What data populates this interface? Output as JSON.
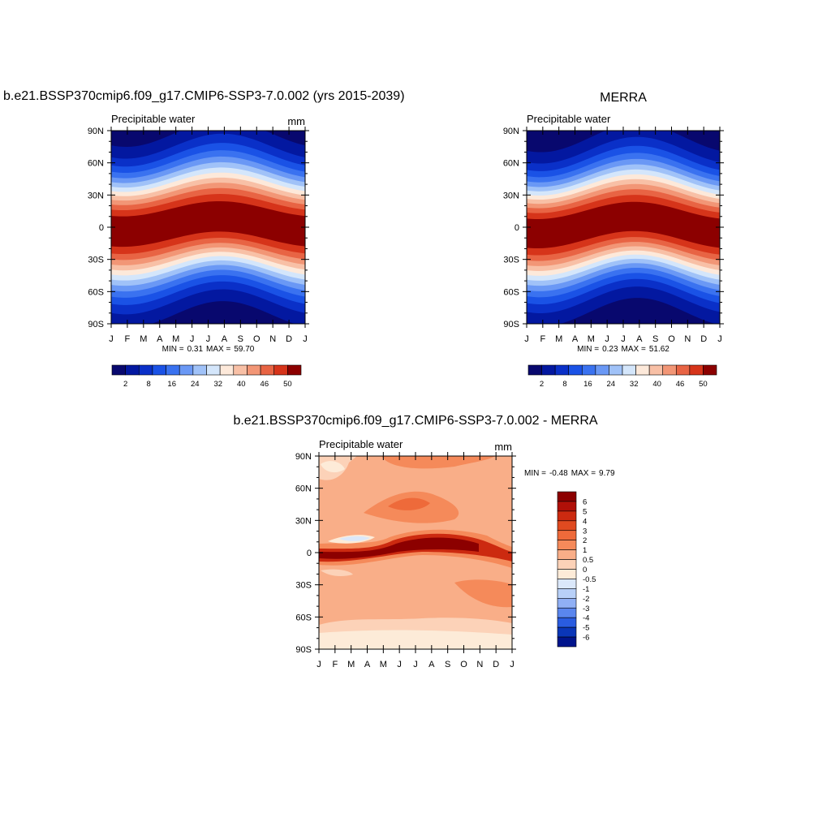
{
  "chart_data": [
    {
      "type": "contour",
      "title": "b.e21.BSSP370cmip6.f09_g17.CMIP6-SSP3-7.0.002 (yrs 2015-2039)",
      "subtitle": "Precipitable water",
      "units": "mm",
      "categories": [
        "J",
        "F",
        "M",
        "A",
        "M",
        "J",
        "J",
        "A",
        "S",
        "O",
        "N",
        "D",
        "J"
      ],
      "ylim": [
        -90,
        90
      ],
      "yticks": [
        {
          "value": 90,
          "label": "90N"
        },
        {
          "value": 60,
          "label": "60N"
        },
        {
          "value": 30,
          "label": "30N"
        },
        0,
        {
          "value": -30,
          "label": "30S"
        },
        {
          "value": -60,
          "label": "60S"
        },
        {
          "value": -90,
          "label": "90S"
        }
      ],
      "min_label": "MIN =",
      "min": 0.31,
      "max_label": "MAX =",
      "max": {
        "value": 59.7,
        "label": "59.70"
      },
      "colorbar_orientation": "horizontal",
      "colors": [
        "#08086e",
        "#0318a0",
        "#0a30c8",
        "#1a52e6",
        "#3a72f0",
        "#6a98f5",
        "#a0c2f8",
        "#d4e6fb",
        "#fde9da",
        "#f8c0a6",
        "#f29676",
        "#e86444",
        "#d6341a",
        "#8c0000"
      ],
      "colorbar_ticks": [
        2,
        8,
        16,
        24,
        32,
        40,
        46,
        50
      ]
    },
    {
      "type": "contour",
      "title": "MERRA",
      "subtitle": "Precipitable water",
      "categories": [
        "J",
        "F",
        "M",
        "A",
        "M",
        "J",
        "J",
        "A",
        "S",
        "O",
        "N",
        "D",
        "J"
      ],
      "ylim": [
        -90,
        90
      ],
      "yticks": [
        {
          "value": 90,
          "label": "90N"
        },
        {
          "value": 60,
          "label": "60N"
        },
        {
          "value": 30,
          "label": "30N"
        },
        0,
        {
          "value": -30,
          "label": "30S"
        },
        {
          "value": -60,
          "label": "60S"
        },
        {
          "value": -90,
          "label": "90S"
        }
      ],
      "min_label": "MIN =",
      "min": 0.23,
      "max_label": "MAX =",
      "max": 51.62,
      "colorbar_orientation": "horizontal",
      "colors": [
        "#08086e",
        "#0318a0",
        "#0a30c8",
        "#1a52e6",
        "#3a72f0",
        "#6a98f5",
        "#a0c2f8",
        "#d4e6fb",
        "#fde9da",
        "#f8c0a6",
        "#f29676",
        "#e86444",
        "#d6341a",
        "#8c0000"
      ],
      "colorbar_ticks": [
        2,
        8,
        16,
        24,
        32,
        40,
        46,
        50
      ]
    },
    {
      "type": "contour-diff",
      "title": "b.e21.BSSP370cmip6.f09_g17.CMIP6-SSP3-7.0.002 - MERRA",
      "subtitle": "Precipitable water",
      "units": "mm",
      "categories": [
        "J",
        "F",
        "M",
        "A",
        "M",
        "J",
        "J",
        "A",
        "S",
        "O",
        "N",
        "D",
        "J"
      ],
      "ylim": [
        -90,
        90
      ],
      "yticks": [
        {
          "value": 90,
          "label": "90N"
        },
        {
          "value": 60,
          "label": "60N"
        },
        {
          "value": 30,
          "label": "30N"
        },
        0,
        {
          "value": -30,
          "label": "30S"
        },
        {
          "value": -60,
          "label": "60S"
        },
        {
          "value": -90,
          "label": "90S"
        }
      ],
      "min_label": "MIN =",
      "min": -0.48,
      "max_label": "MAX =",
      "max": 9.79,
      "colorbar_orientation": "vertical",
      "colors": [
        "#8c0000",
        "#b01008",
        "#cc2a10",
        "#e04a20",
        "#ee6a3a",
        "#f58a5a",
        "#f9ae88",
        "#fcd2b8",
        "#fdebd8",
        "#dbe8fa",
        "#b8d0f8",
        "#90b0f5",
        "#5a86ee",
        "#2a5ce0",
        "#0a36b8",
        "#00148c"
      ],
      "colorbar_ticks": [
        6,
        5,
        4,
        3,
        2,
        1,
        0.5,
        0,
        -0.5,
        -1,
        -2,
        -3,
        -4,
        -5,
        -6
      ]
    }
  ]
}
